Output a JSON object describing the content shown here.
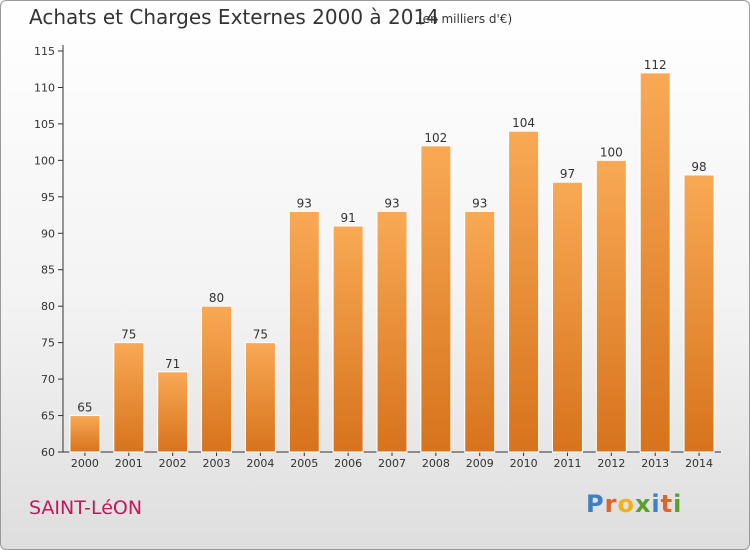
{
  "title": "Achats et Charges Externes 2000 à 2014",
  "unit_note": "(en milliers d'€)",
  "commune": "SAINT-LéON",
  "brand": "Proxiti",
  "colors": {
    "bar_top": "#f9a955",
    "bar_bottom": "#d7731c",
    "commune": "#c2185b",
    "text": "#333333"
  },
  "chart_data": {
    "type": "bar",
    "title": "Achats et Charges Externes 2000 à 2014",
    "subtitle": "(en milliers d'€)",
    "xlabel": "",
    "ylabel": "",
    "categories": [
      "2000",
      "2001",
      "2002",
      "2003",
      "2004",
      "2005",
      "2006",
      "2007",
      "2008",
      "2009",
      "2010",
      "2011",
      "2012",
      "2013",
      "2014"
    ],
    "values": [
      65,
      75,
      71,
      80,
      75,
      93,
      91,
      93,
      102,
      93,
      104,
      97,
      100,
      112,
      98
    ],
    "ylim": [
      60,
      115
    ],
    "yticks": [
      60,
      65,
      70,
      75,
      80,
      85,
      90,
      95,
      100,
      105,
      110,
      115
    ],
    "grid": false,
    "legend": "none"
  }
}
